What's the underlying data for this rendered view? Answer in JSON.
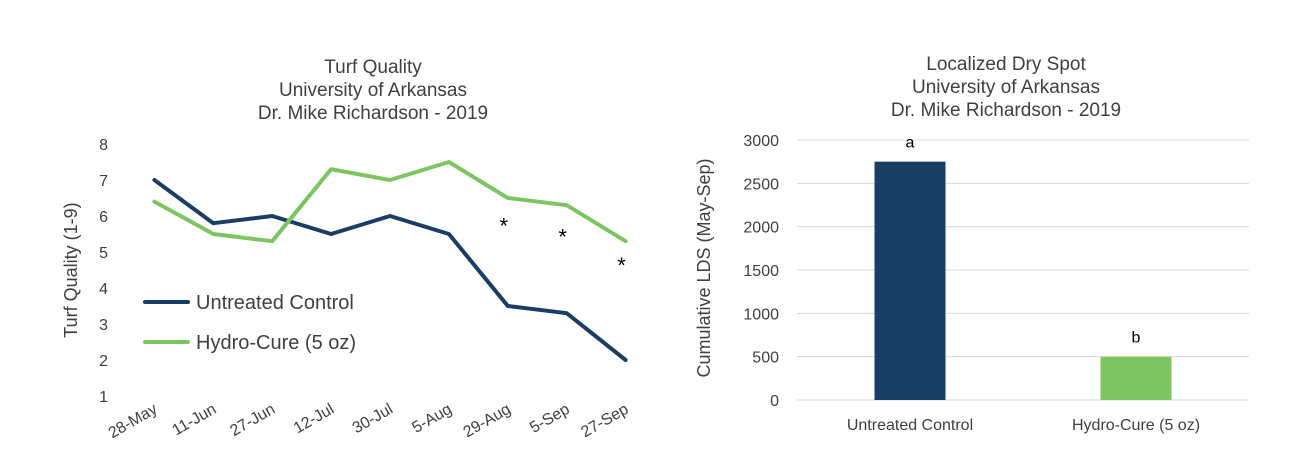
{
  "chart_data": [
    {
      "type": "line",
      "title": [
        "Turf Quality",
        "University of Arkansas",
        "Dr. Mike Richardson - 2019"
      ],
      "xlabel": "",
      "ylabel": "Turf Quality (1-9)",
      "categories": [
        "28-May",
        "11-Jun",
        "27-Jun",
        "12-Jul",
        "30-Jul",
        "5-Aug",
        "29-Aug",
        "5-Sep",
        "27-Sep"
      ],
      "ylim": [
        1,
        8
      ],
      "yticks": [
        1,
        2,
        3,
        4,
        5,
        6,
        7,
        8
      ],
      "series": [
        {
          "name": "Untreated Control",
          "color": "#1a3d66",
          "values": [
            7.0,
            5.8,
            6.0,
            5.5,
            6.0,
            5.5,
            3.5,
            3.3,
            2.0
          ]
        },
        {
          "name": "Hydro-Cure (5 oz)",
          "color": "#7cc561",
          "values": [
            6.4,
            5.5,
            5.3,
            7.3,
            7.0,
            7.5,
            6.5,
            6.3,
            5.3
          ]
        }
      ],
      "annotations": [
        {
          "category": "29-Aug",
          "y": 5.9,
          "text": "*"
        },
        {
          "category": "5-Sep",
          "y": 5.6,
          "text": "*"
        },
        {
          "category": "27-Sep",
          "y": 4.8,
          "text": "*"
        }
      ],
      "legend": "inside-bottom-left",
      "grid": false
    },
    {
      "type": "bar",
      "title": [
        "Localized Dry Spot",
        "University of Arkansas",
        "Dr. Mike Richardson - 2019"
      ],
      "xlabel": "",
      "ylabel": "Cumulative LDS (May-Sep)",
      "categories": [
        "Untreated Control",
        "Hydro-Cure (5 oz)"
      ],
      "values": [
        2750,
        500
      ],
      "colors": [
        "#1a3d66",
        "#7cc561"
      ],
      "bar_labels": [
        "a",
        "b"
      ],
      "ylim": [
        0,
        3000
      ],
      "yticks": [
        0,
        500,
        1000,
        1500,
        2000,
        2500,
        3000
      ],
      "grid": true
    }
  ]
}
